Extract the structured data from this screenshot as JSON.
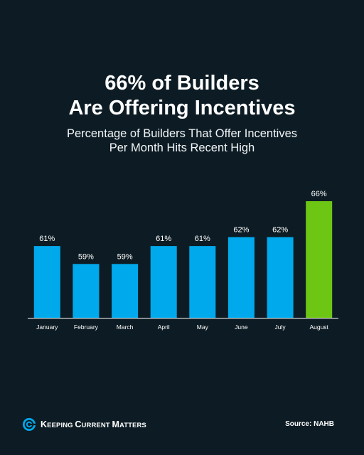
{
  "header": {
    "title_lines": [
      "66% of Builders",
      "Are Offering Incentives"
    ],
    "subtitle_lines": [
      "Percentage of Builders That Offer Incentives",
      "Per Month Hits Recent High"
    ]
  },
  "chart_data": {
    "type": "bar",
    "categories": [
      "January",
      "February",
      "March",
      "April",
      "May",
      "June",
      "July",
      "August"
    ],
    "values": [
      61,
      59,
      59,
      61,
      61,
      62,
      62,
      66
    ],
    "data_labels": [
      "61%",
      "59%",
      "59%",
      "61%",
      "61%",
      "62%",
      "62%",
      "66%"
    ],
    "bar_colors": [
      "#00a9ec",
      "#00a9ec",
      "#00a9ec",
      "#00a9ec",
      "#00a9ec",
      "#00a9ec",
      "#00a9ec",
      "#6ec614"
    ],
    "title": "66% of Builders Are Offering Incentives",
    "subtitle": "Percentage of Builders That Offer Incentives Per Month Hits Recent High",
    "xlabel": "",
    "ylabel": "",
    "ylim": [
      53,
      66
    ],
    "grid": false,
    "legend": "none"
  },
  "footer": {
    "brand_parts": [
      {
        "text": "K",
        "sc": false
      },
      {
        "text": "EEPING ",
        "sc": true
      },
      {
        "text": "C",
        "sc": false
      },
      {
        "text": "URRENT ",
        "sc": true
      },
      {
        "text": "M",
        "sc": false
      },
      {
        "text": "ATTERS",
        "sc": true
      }
    ],
    "source": "Source: NAHB"
  },
  "colors": {
    "background": "#0d1c24",
    "bar_default": "#00a9ec",
    "bar_highlight": "#6ec614",
    "axis": "#ffffff",
    "text": "#ffffff"
  },
  "icons": {
    "logo": "kcm-swirl-logo-icon"
  }
}
